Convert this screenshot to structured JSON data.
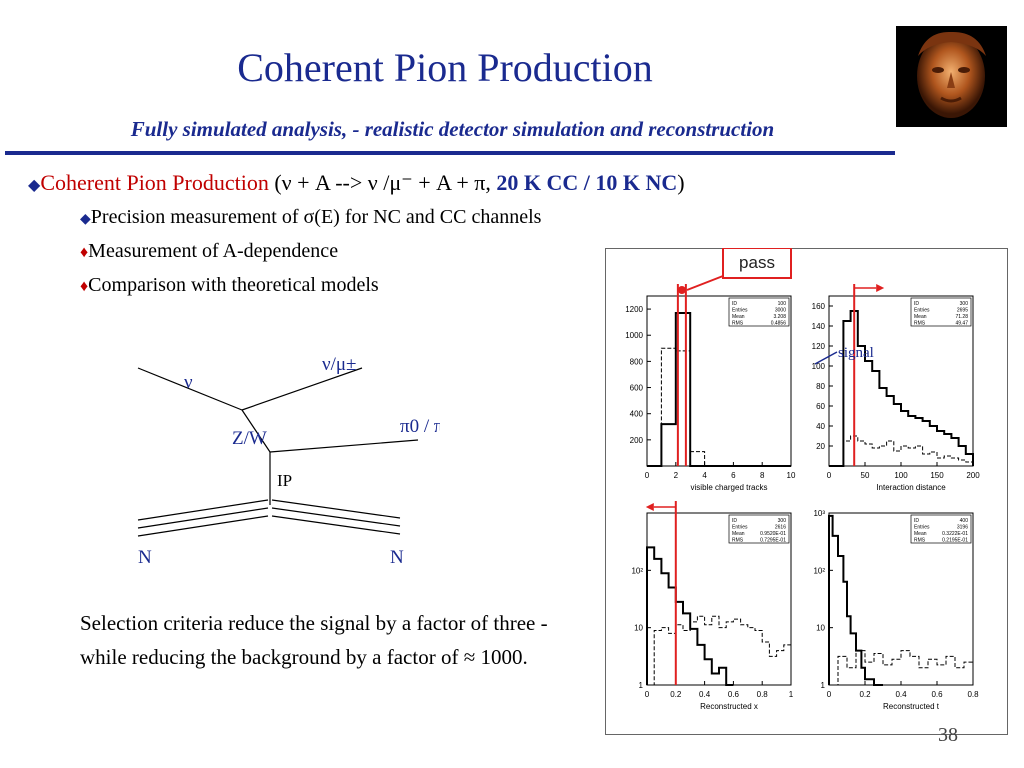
{
  "title": "Coherent Pion Production",
  "subtitle": "Fully simulated analysis, - realistic detector simulation and reconstruction",
  "bullet": {
    "label": "Coherent Pion Production",
    "reaction": "(ν + A --> ν /μ⁻ + A + π, ",
    "rates": "20 K CC / 10 K NC",
    "close": ")"
  },
  "subbullets": [
    "Precision measurement of σ(E) for NC and CC channels",
    "Measurement of A-dependence",
    "Comparison with theoretical models"
  ],
  "diagram": {
    "nu_in": "ν",
    "nu_out": "ν/μ±",
    "pion": "π0 / π±",
    "boson": "Z/W",
    "pomeron": "IP",
    "n_left": "N",
    "n_right": "N"
  },
  "conclusion": "Selection criteria reduce the signal by a factor of three - while reducing the background by a factor of ≈ 1000.",
  "page_number": "38",
  "annotations": {
    "pass": "pass",
    "signal": "signal"
  },
  "colors": {
    "title_blue": "#1a2a8f",
    "accent_red": "#c00000",
    "cut_red": "#e02020"
  },
  "icons": {
    "photo": "sculpture-face-photo"
  },
  "chart_data": [
    {
      "type": "line",
      "xlabel": "visible charged tracks",
      "xlim": [
        0,
        10
      ],
      "ylim": [
        0,
        1300
      ],
      "xticks": [
        "0",
        "2",
        "4",
        "6",
        "8",
        "10"
      ],
      "yticks": [
        "200",
        "400",
        "600",
        "800",
        "1000",
        "1200"
      ],
      "stats": [
        [
          "ID",
          "100"
        ],
        [
          "Entries",
          "3000"
        ],
        [
          "Mean",
          "3.208"
        ],
        [
          "RMS",
          "0.4856"
        ]
      ],
      "cut": 2.7,
      "series": [
        {
          "style": "solid",
          "x": [
            0,
            1,
            2,
            3,
            4,
            5,
            6,
            7,
            8,
            9,
            10
          ],
          "y": [
            0,
            320,
            1170,
            0,
            0,
            0,
            0,
            0,
            0,
            0,
            0
          ]
        },
        {
          "style": "dashed",
          "x": [
            0,
            1,
            2,
            3,
            4,
            5,
            6,
            7,
            8,
            9,
            10
          ],
          "y": [
            0,
            900,
            880,
            110,
            0,
            0,
            0,
            0,
            0,
            0,
            0
          ]
        }
      ]
    },
    {
      "type": "line",
      "xlabel": "Interaction distance",
      "xlim": [
        0,
        200
      ],
      "ylim": [
        0,
        170
      ],
      "xticks": [
        "0",
        "50",
        "100",
        "150",
        "200"
      ],
      "yticks": [
        "20",
        "40",
        "60",
        "80",
        "100",
        "120",
        "140",
        "160"
      ],
      "stats": [
        [
          "ID",
          "300"
        ],
        [
          "Entries",
          "2695"
        ],
        [
          "Mean",
          "71.28"
        ],
        [
          "RMS",
          "49.47"
        ]
      ],
      "cut": 35,
      "series": [
        {
          "style": "solid",
          "x": [
            0,
            10,
            20,
            30,
            40,
            50,
            60,
            70,
            80,
            90,
            100,
            110,
            120,
            130,
            140,
            150,
            160,
            170,
            180,
            190,
            200
          ],
          "y": [
            0,
            0,
            145,
            155,
            120,
            105,
            95,
            78,
            70,
            62,
            55,
            50,
            48,
            45,
            40,
            35,
            32,
            28,
            20,
            12,
            0
          ]
        },
        {
          "style": "dashed",
          "x": [
            0,
            10,
            20,
            30,
            40,
            50,
            60,
            70,
            80,
            90,
            100,
            110,
            120,
            130,
            140,
            150,
            160,
            170,
            180,
            190,
            200
          ],
          "y": [
            0,
            0,
            25,
            30,
            25,
            22,
            18,
            20,
            25,
            15,
            20,
            18,
            20,
            12,
            14,
            8,
            10,
            8,
            6,
            4,
            0
          ]
        }
      ]
    },
    {
      "type": "line",
      "xlabel": "Reconstructed x",
      "xlim": [
        0,
        1
      ],
      "ylim": [
        0,
        3
      ],
      "log_y": true,
      "xticks": [
        "0",
        "0.2",
        "0.4",
        "0.6",
        "0.8",
        "1"
      ],
      "yticks": [
        "1",
        "10",
        "10²"
      ],
      "stats": [
        [
          "ID",
          "300"
        ],
        [
          "Entries",
          "2616"
        ],
        [
          "Mean",
          "0.9520E-01"
        ],
        [
          "RMS",
          "0.7295E-01"
        ]
      ],
      "cut": 0.2,
      "series": [
        {
          "style": "solid",
          "x": [
            0,
            0.05,
            0.1,
            0.15,
            0.2,
            0.25,
            0.3,
            0.35,
            0.4,
            0.45,
            0.5,
            0.55,
            0.6
          ],
          "y": [
            2.4,
            2.2,
            1.95,
            1.7,
            1.45,
            1.25,
            0.98,
            0.7,
            0.45,
            0.2,
            0.3,
            0,
            0
          ]
        },
        {
          "style": "dashed",
          "x": [
            0,
            0.05,
            0.1,
            0.15,
            0.2,
            0.25,
            0.3,
            0.35,
            0.4,
            0.45,
            0.5,
            0.55,
            0.6,
            0.65,
            0.7,
            0.75,
            0.8,
            0.85,
            0.9,
            0.95,
            1
          ],
          "y": [
            0,
            0.95,
            1.0,
            0.9,
            1.05,
            0.95,
            1.1,
            1.2,
            1.05,
            1.2,
            1.0,
            1.1,
            1.15,
            1.05,
            1.0,
            0.95,
            0.75,
            0.5,
            0.6,
            0.7,
            0
          ]
        }
      ]
    },
    {
      "type": "line",
      "xlabel": "Reconstructed t",
      "xlim": [
        0,
        0.8
      ],
      "ylim": [
        0,
        3
      ],
      "log_y": true,
      "xticks": [
        "0",
        "0.2",
        "0.4",
        "0.6",
        "0.8"
      ],
      "yticks": [
        "1",
        "10",
        "10²",
        "10³"
      ],
      "stats": [
        [
          "ID",
          "400"
        ],
        [
          "Entries",
          "3196"
        ],
        [
          "Mean",
          "0.3222E-01"
        ],
        [
          "RMS",
          "0.2195E-01"
        ]
      ],
      "cut": null,
      "series": [
        {
          "style": "solid",
          "x": [
            0,
            0.02,
            0.05,
            0.08,
            0.1,
            0.12,
            0.15,
            0.18,
            0.2,
            0.25,
            0.3
          ],
          "y": [
            2.95,
            2.6,
            2.25,
            1.8,
            1.2,
            0.9,
            0.6,
            0.3,
            0.1,
            0,
            0
          ]
        },
        {
          "style": "dashed",
          "x": [
            0,
            0.05,
            0.1,
            0.15,
            0.2,
            0.25,
            0.3,
            0.35,
            0.4,
            0.45,
            0.5,
            0.55,
            0.6,
            0.65,
            0.7,
            0.75,
            0.8
          ],
          "y": [
            0,
            0.5,
            0.3,
            0.6,
            0.4,
            0.55,
            0.35,
            0.45,
            0.6,
            0.5,
            0.3,
            0.45,
            0.35,
            0.5,
            0.3,
            0.4,
            0
          ]
        }
      ]
    }
  ]
}
